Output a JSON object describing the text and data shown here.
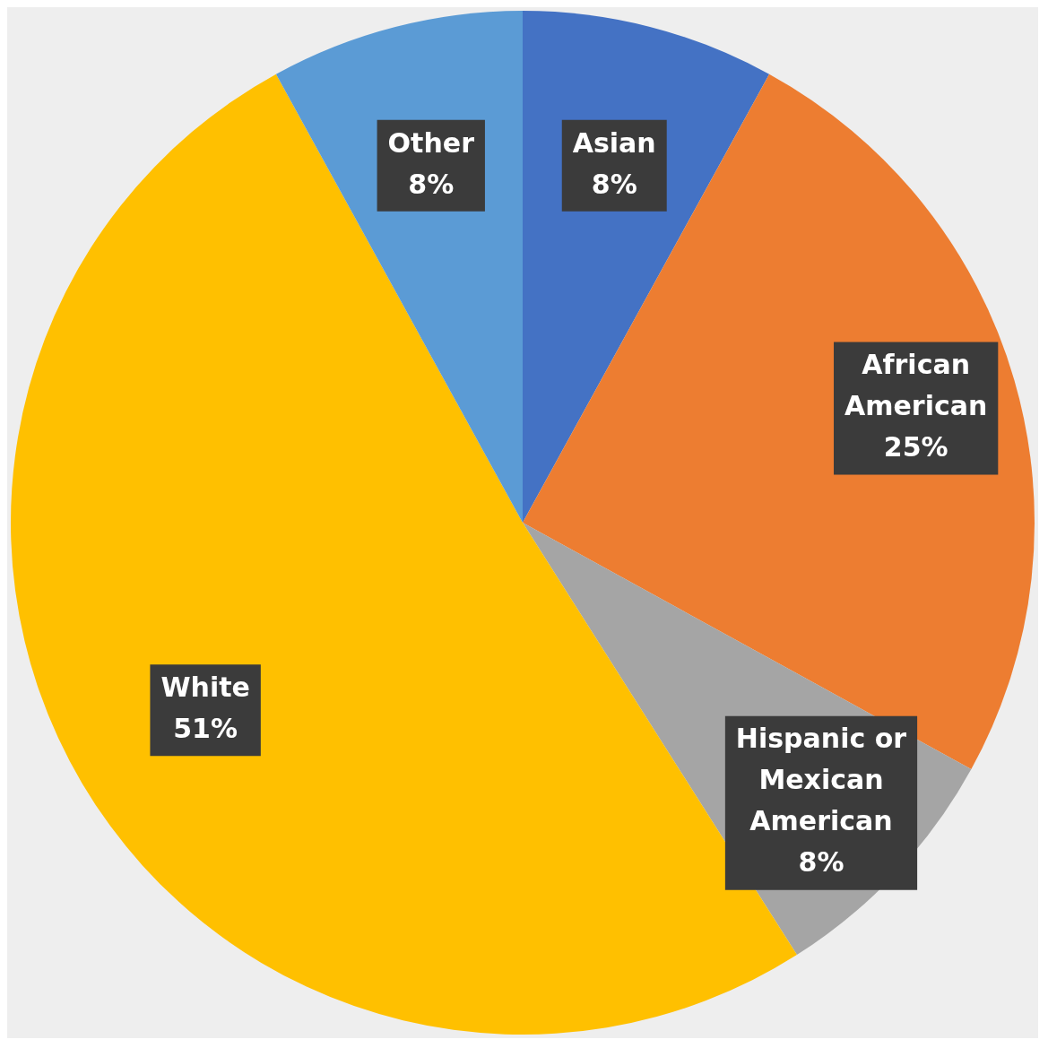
{
  "chart_data": {
    "type": "pie",
    "categories": [
      "Asian",
      "African American",
      "Hispanic or Mexican American",
      "White",
      "Other"
    ],
    "values": [
      8,
      25,
      8,
      51,
      8
    ],
    "value_labels": [
      "8%",
      "25%",
      "8%",
      "51%",
      "8%"
    ],
    "colors": [
      "#4472c4",
      "#ed7d31",
      "#a5a5a5",
      "#ffc000",
      "#5b9bd5"
    ],
    "legend": false
  }
}
